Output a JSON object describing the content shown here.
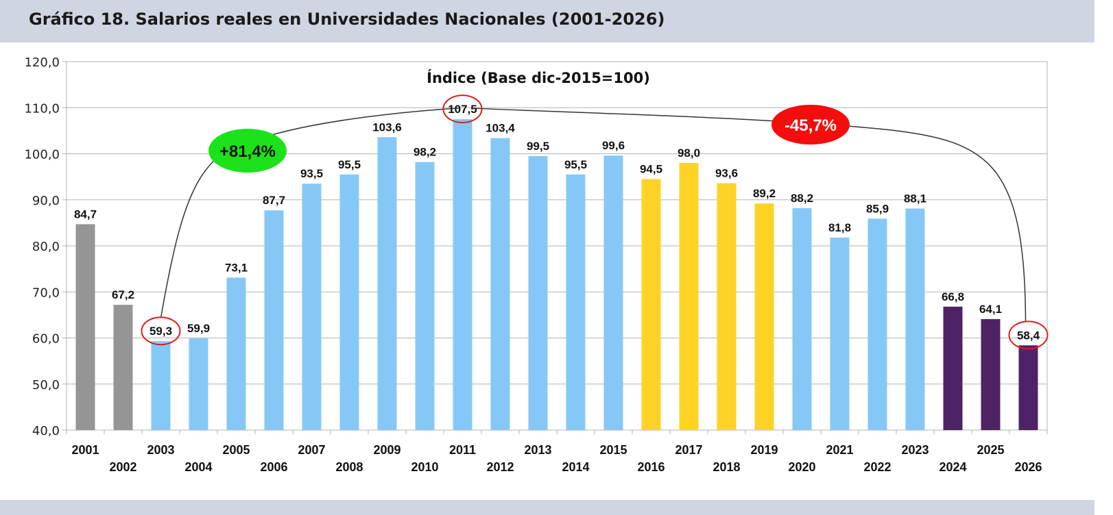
{
  "header": {
    "title": "Gráfico 18. Salarios reales en Universidades Nacionales (2001-2026)"
  },
  "colors": {
    "header_band": "#cfd5e1",
    "gray": "#959595",
    "light_blue": "#85c8f8",
    "yellow": "#fed325",
    "purple": "#4e2366",
    "badge_green": "#1be21b",
    "badge_red": "#f50c0c",
    "circle_red": "#e01b1b"
  },
  "chart_data": {
    "type": "bar",
    "title": "Índice (Base dic-2015=100)",
    "xlabel": "",
    "ylabel": "",
    "ylim": [
      40,
      120
    ],
    "yticks": [
      "40,0",
      "50,0",
      "60,0",
      "70,0",
      "80,0",
      "90,0",
      "100,0",
      "110,0",
      "120,0"
    ],
    "grid": true,
    "legend": "none",
    "categories": [
      "2001",
      "2002",
      "2003",
      "2004",
      "2005",
      "2006",
      "2007",
      "2008",
      "2009",
      "2010",
      "2011",
      "2012",
      "2013",
      "2014",
      "2015",
      "2016",
      "2017",
      "2018",
      "2019",
      "2020",
      "2021",
      "2022",
      "2023",
      "2024",
      "2025",
      "2026"
    ],
    "values": [
      84.7,
      67.2,
      59.3,
      59.9,
      73.1,
      87.7,
      93.5,
      95.5,
      103.6,
      98.2,
      107.5,
      103.4,
      99.5,
      95.5,
      99.6,
      94.5,
      98.0,
      93.6,
      89.2,
      88.2,
      81.8,
      85.9,
      88.1,
      66.8,
      64.1,
      58.4
    ],
    "value_labels": [
      "84,7",
      "67,2",
      "59,3",
      "59,9",
      "73,1",
      "87,7",
      "93,5",
      "95,5",
      "103,6",
      "98,2",
      "107,5",
      "103,4",
      "99,5",
      "95,5",
      "99,6",
      "94,5",
      "98,0",
      "93,6",
      "89,2",
      "88,2",
      "81,8",
      "85,9",
      "88,1",
      "66,8",
      "64,1",
      "58,4"
    ],
    "bar_colors": [
      "gray",
      "gray",
      "light_blue",
      "light_blue",
      "light_blue",
      "light_blue",
      "light_blue",
      "light_blue",
      "light_blue",
      "light_blue",
      "light_blue",
      "light_blue",
      "light_blue",
      "light_blue",
      "light_blue",
      "yellow",
      "yellow",
      "yellow",
      "yellow",
      "light_blue",
      "light_blue",
      "light_blue",
      "light_blue",
      "purple",
      "purple",
      "purple"
    ],
    "highlighted_years": [
      "2003",
      "2011",
      "2026"
    ],
    "annotations": [
      {
        "text": "+81,4%",
        "from": "2003",
        "to": "2011",
        "color": "badge_green",
        "text_color": "#111111"
      },
      {
        "text": "-45,7%",
        "from": "2011",
        "to": "2026",
        "color": "badge_red",
        "text_color": "#ffffff"
      }
    ]
  }
}
